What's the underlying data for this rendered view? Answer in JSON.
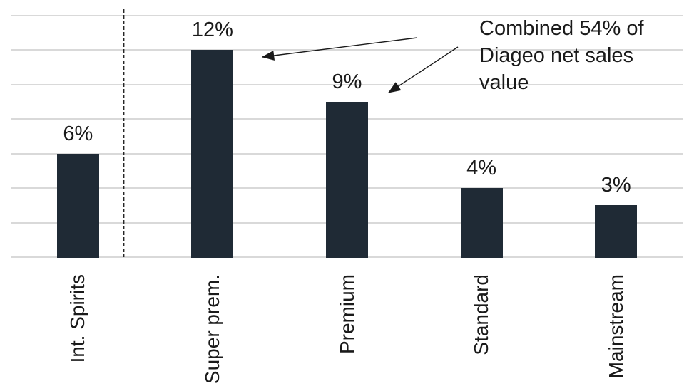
{
  "chart_data": {
    "type": "bar",
    "categories": [
      "Int. Spirits",
      "Super prem.",
      "Premium",
      "Standard",
      "Mainstream"
    ],
    "values": [
      6,
      12,
      9,
      4,
      3
    ],
    "data_labels": [
      "6%",
      "12%",
      "9%",
      "4%",
      "3%"
    ],
    "title": "",
    "xlabel": "",
    "ylabel": "",
    "ylim": [
      0,
      14
    ],
    "gridline_step": 2,
    "grid": true,
    "legend": false,
    "separator_after_category_index": 0,
    "annotation": {
      "lines": [
        "Combined 54% of",
        "Diageo net sales",
        "value"
      ],
      "text": "Combined 54% of Diageo net sales value",
      "arrow_targets": [
        "Super prem.",
        "Premium"
      ]
    },
    "colors": {
      "bar": "#1f2a35",
      "gridline": "#d9d9d9",
      "text": "#1a1a1a",
      "arrow": "#1a1a1a",
      "separator": "#262626"
    }
  }
}
